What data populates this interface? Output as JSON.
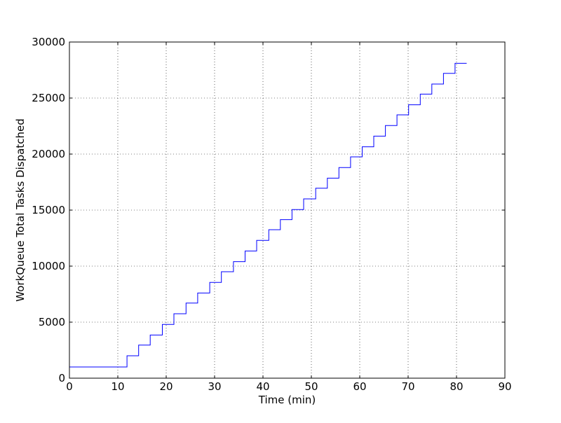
{
  "chart_data": {
    "type": "line",
    "title": "",
    "xlabel": "Time (min)",
    "ylabel": "WorkQueue Total Tasks Dispatched",
    "xlim": [
      0,
      90
    ],
    "ylim": [
      0,
      30000
    ],
    "xticks": [
      0,
      10,
      20,
      30,
      40,
      50,
      60,
      70,
      80,
      90
    ],
    "yticks": [
      0,
      5000,
      10000,
      15000,
      20000,
      25000,
      30000
    ],
    "grid": true,
    "legend": "none",
    "line_color": "#0000ff",
    "series": [
      {
        "x": [
          0,
          11.9,
          11.9,
          14.3,
          14.3,
          16.7,
          16.7,
          19.2,
          19.2,
          21.6,
          21.6,
          24.1,
          24.1,
          26.5,
          26.5,
          29.0,
          29.0,
          31.4,
          31.4,
          33.9,
          33.9,
          36.3,
          36.3,
          38.7,
          38.7,
          41.2,
          41.2,
          43.6,
          43.6,
          46.0,
          46.0,
          48.4,
          48.4,
          50.9,
          50.9,
          53.3,
          53.3,
          55.7,
          55.7,
          58.1,
          58.1,
          60.5,
          60.5,
          62.9,
          62.9,
          65.3,
          65.3,
          67.7,
          67.7,
          70.1,
          70.1,
          72.5,
          72.5,
          74.9,
          74.9,
          77.3,
          77.3,
          79.7,
          79.7,
          82.1
        ],
        "y": [
          1000,
          1000,
          2000,
          2000,
          2950,
          2950,
          3850,
          3850,
          4800,
          4800,
          5750,
          5750,
          6700,
          6700,
          7600,
          7600,
          8550,
          8550,
          9500,
          9500,
          10400,
          10400,
          11350,
          11350,
          12300,
          12300,
          13250,
          13250,
          14150,
          14150,
          15050,
          15050,
          16000,
          16000,
          16950,
          16950,
          17850,
          17850,
          18800,
          18800,
          19750,
          19750,
          20650,
          20650,
          21600,
          21600,
          22550,
          22550,
          23500,
          23500,
          24400,
          24400,
          25350,
          25350,
          26250,
          26250,
          27200,
          27200,
          28100,
          28100
        ]
      }
    ]
  }
}
